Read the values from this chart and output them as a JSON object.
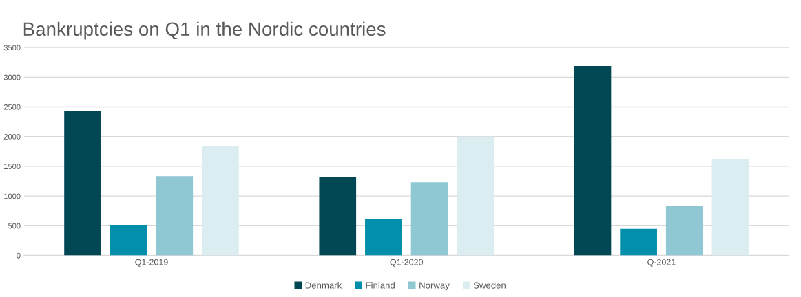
{
  "chart_data": {
    "type": "bar",
    "title": "Bankruptcies on Q1 in the Nordic countries",
    "categories": [
      "Q1-2019",
      "Q1-2020",
      "Q-2021"
    ],
    "series": [
      {
        "name": "Denmark",
        "color": "#014754",
        "values": [
          2430,
          1315,
          3190
        ]
      },
      {
        "name": "Finland",
        "color": "#028fab",
        "values": [
          515,
          610,
          450
        ]
      },
      {
        "name": "Norway",
        "color": "#8fc7d3",
        "values": [
          1335,
          1230,
          840
        ]
      },
      {
        "name": "Sweden",
        "color": "#dcedf2",
        "values": [
          1840,
          2000,
          1625
        ]
      }
    ],
    "ylim": [
      0,
      3500
    ],
    "yticks": [
      0,
      500,
      1000,
      1500,
      2000,
      2500,
      3000,
      3500
    ],
    "grid": "y",
    "legend": "bottom"
  }
}
